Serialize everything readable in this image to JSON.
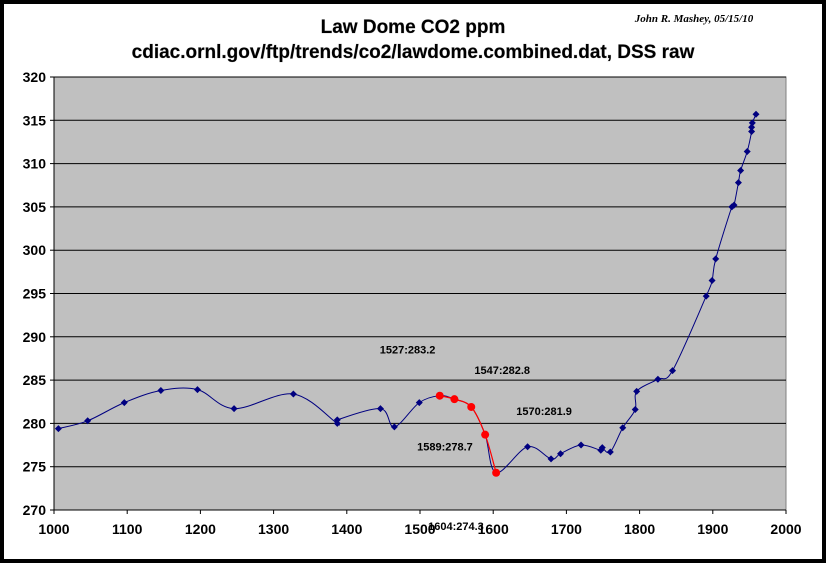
{
  "chart_data": {
    "type": "line",
    "title": "Law Dome CO2 ppm",
    "subtitle": "cdiac.ornl.gov/ftp/trends/co2/lawdome.combined.dat, DSS raw",
    "author_note": "John R. Mashey, 05/15/10",
    "xlabel": "",
    "ylabel": "",
    "xlim": [
      1000,
      2000
    ],
    "ylim": [
      270,
      320
    ],
    "x_ticks": [
      1000,
      1100,
      1200,
      1300,
      1400,
      1500,
      1600,
      1700,
      1800,
      1900,
      2000
    ],
    "y_ticks": [
      270,
      275,
      280,
      285,
      290,
      295,
      300,
      305,
      310,
      315,
      320
    ],
    "grid": true,
    "plot_background": "#c0c0c0",
    "series": [
      {
        "color": "#000080",
        "marker": "diamond",
        "points": [
          [
            1006,
            279.4
          ],
          [
            1046,
            280.3
          ],
          [
            1096,
            282.4
          ],
          [
            1146,
            283.8
          ],
          [
            1196,
            283.9
          ],
          [
            1246,
            281.7
          ],
          [
            1327,
            283.4
          ],
          [
            1387,
            280.0
          ],
          [
            1387,
            280.4
          ],
          [
            1446,
            281.7
          ],
          [
            1465,
            279.6
          ],
          [
            1499,
            282.4
          ],
          [
            1527,
            283.2
          ],
          [
            1547,
            282.8
          ],
          [
            1570,
            281.9
          ],
          [
            1589,
            278.7
          ],
          [
            1604,
            274.3
          ],
          [
            1647,
            277.3
          ],
          [
            1679,
            275.9
          ],
          [
            1692,
            276.5
          ],
          [
            1720,
            277.5
          ],
          [
            1747,
            276.9
          ],
          [
            1749,
            277.2
          ],
          [
            1760,
            276.7
          ],
          [
            1777,
            279.5
          ],
          [
            1794,
            281.6
          ],
          [
            1796,
            283.7
          ],
          [
            1825,
            285.1
          ],
          [
            1845,
            286.1
          ],
          [
            1891,
            294.7
          ],
          [
            1899,
            296.5
          ],
          [
            1904,
            299.0
          ],
          [
            1926,
            305.0
          ],
          [
            1929,
            305.2
          ],
          [
            1935,
            307.8
          ],
          [
            1938,
            309.2
          ],
          [
            1947,
            311.4
          ],
          [
            1953,
            313.7
          ],
          [
            1953,
            314.2
          ],
          [
            1954,
            314.7
          ],
          [
            1959,
            315.7
          ]
        ]
      }
    ],
    "highlight_points": [
      {
        "x": 1527,
        "y": 283.2,
        "label": "1527:283.2"
      },
      {
        "x": 1547,
        "y": 282.8,
        "label": "1547:282.8"
      },
      {
        "x": 1570,
        "y": 281.9,
        "label": "1570:281.9"
      },
      {
        "x": 1589,
        "y": 278.7,
        "label": "1589:278.7"
      },
      {
        "x": 1604,
        "y": 274.3,
        "label": "1604:274.3"
      }
    ],
    "highlight_color": "#ff0000"
  }
}
